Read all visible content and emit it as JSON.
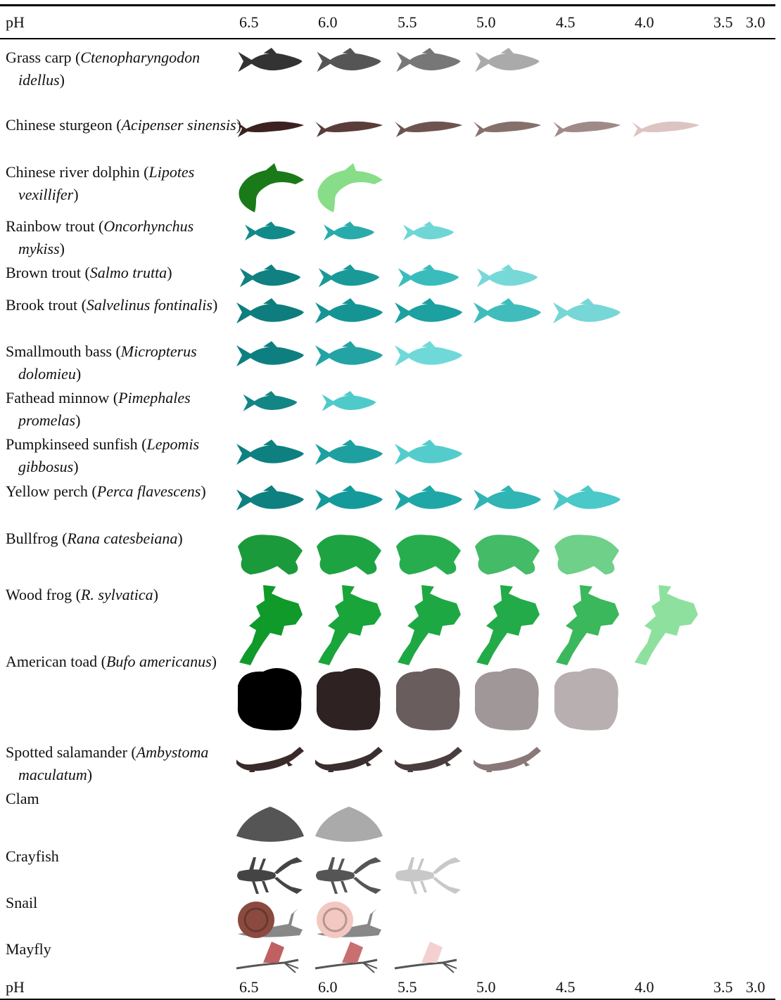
{
  "header": {
    "label": "pH",
    "columns": [
      "6.5",
      "6.0",
      "5.5",
      "5.0",
      "4.5",
      "4.0",
      "3.5",
      "3.0"
    ]
  },
  "rows": [
    {
      "common": "Grass carp",
      "scientific": "Ctenopharyngodon idellus"
    },
    {
      "common": "Chinese sturgeon",
      "scientific": "Acipenser sinensis"
    },
    {
      "common": "Chinese river dolphin",
      "scientific": "Lipotes vexillifer"
    },
    {
      "common": "Rainbow trout",
      "scientific": "Oncorhynchus mykiss"
    },
    {
      "common": "Brown trout",
      "scientific": "Salmo trutta"
    },
    {
      "common": "Brook trout",
      "scientific": "Salvelinus fontinalis"
    },
    {
      "common": "Smallmouth bass",
      "scientific": "Micropterus dolomieu"
    },
    {
      "common": "Fathead minnow",
      "scientific": "Pimephales promelas"
    },
    {
      "common": "Pumpkinseed sunfish",
      "scientific": "Lepomis gibbosus"
    },
    {
      "common": "Yellow perch",
      "scientific": "Perca flavescens"
    },
    {
      "common": "Bullfrog",
      "scientific": "Rana catesbeiana"
    },
    {
      "common": "Wood frog",
      "scientific": "R. sylvatica"
    },
    {
      "common": "American toad",
      "scientific": "Bufo americanus"
    },
    {
      "common": "Spotted salamander",
      "scientific": "Ambystoma maculatum"
    },
    {
      "common": "Clam"
    },
    {
      "common": "Crayfish"
    },
    {
      "common": "Snail"
    },
    {
      "common": "Mayfly"
    }
  ],
  "footer": {
    "label": "pH",
    "columns": [
      "6.5",
      "6.0",
      "5.5",
      "5.0",
      "4.5",
      "4.0",
      "3.5",
      "3.0"
    ]
  }
}
